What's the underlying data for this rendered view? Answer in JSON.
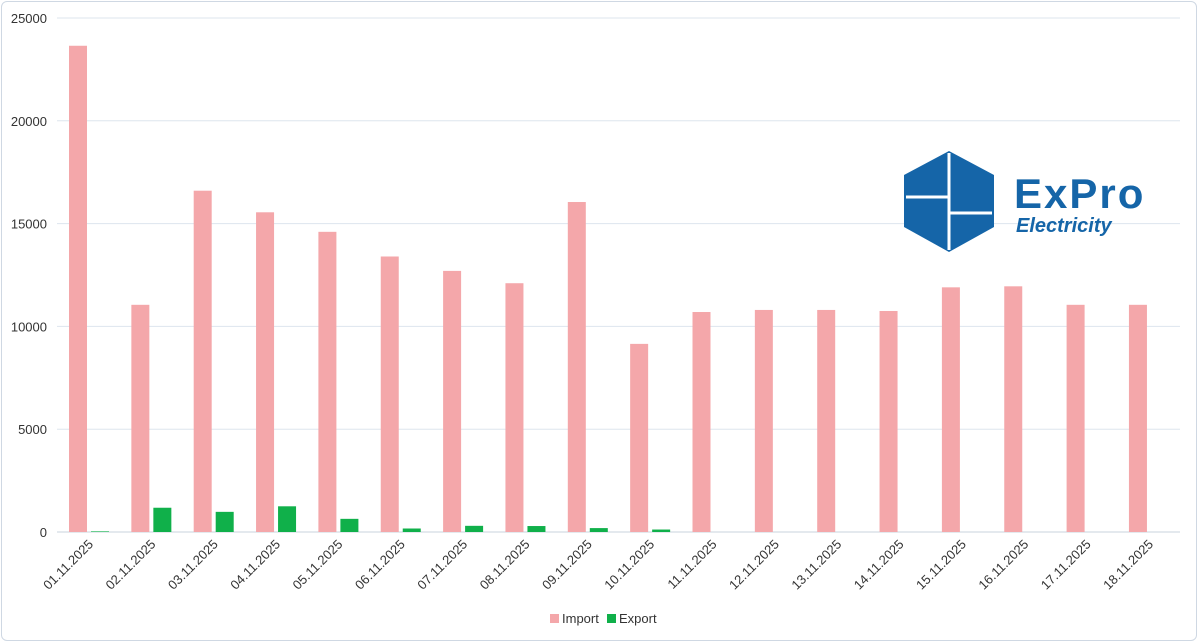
{
  "chart_data": {
    "type": "bar",
    "categories": [
      "01.11.2025",
      "02.11.2025",
      "03.11.2025",
      "04.11.2025",
      "05.11.2025",
      "06.11.2025",
      "07.11.2025",
      "08.11.2025",
      "09.11.2025",
      "10.11.2025",
      "11.11.2025",
      "12.11.2025",
      "13.11.2025",
      "14.11.2025",
      "15.11.2025",
      "16.11.2025",
      "17.11.2025",
      "18.11.2025"
    ],
    "series": [
      {
        "name": "Import",
        "color": "#f4a7aa",
        "values": [
          23650,
          11050,
          16600,
          15550,
          14600,
          13400,
          12700,
          12100,
          16050,
          9150,
          10700,
          10800,
          10800,
          10750,
          11900,
          11950,
          11050,
          11050
        ]
      },
      {
        "name": "Export",
        "color": "#10b04a",
        "values": [
          30,
          1180,
          980,
          1250,
          640,
          170,
          300,
          290,
          190,
          120,
          0,
          0,
          0,
          0,
          0,
          0,
          0,
          0
        ]
      }
    ],
    "ylim": [
      0,
      25000
    ],
    "yticks": [
      0,
      5000,
      10000,
      15000,
      20000,
      25000
    ],
    "grid": true,
    "legend_position": "bottom-center",
    "title": "",
    "xlabel": "",
    "ylabel": ""
  },
  "logo": {
    "name": "ExPro",
    "subtitle": "Electricity",
    "color": "#1565a8"
  }
}
